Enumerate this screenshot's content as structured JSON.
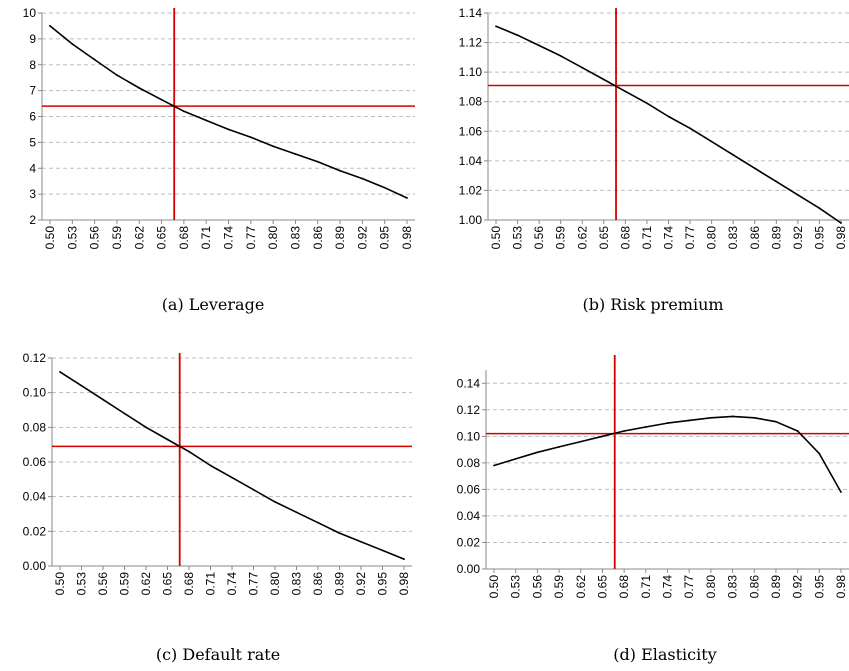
{
  "chart_data": [
    {
      "type": "line",
      "caption": "(a) Leverage",
      "x": [
        0.5,
        0.53,
        0.56,
        0.59,
        0.62,
        0.65,
        0.68,
        0.71,
        0.74,
        0.77,
        0.8,
        0.83,
        0.86,
        0.89,
        0.92,
        0.95,
        0.98
      ],
      "x_ticks": [
        "0.50",
        "0.53",
        "0.56",
        "0.59",
        "0.62",
        "0.65",
        "0.68",
        "0.71",
        "0.74",
        "0.77",
        "0.80",
        "0.83",
        "0.86",
        "0.89",
        "0.92",
        "0.95",
        "0.98"
      ],
      "series": [
        {
          "values": [
            9.5,
            8.8,
            8.2,
            7.6,
            7.1,
            6.65,
            6.2,
            5.85,
            5.5,
            5.2,
            4.85,
            4.55,
            4.25,
            3.9,
            3.6,
            3.25,
            2.85
          ]
        }
      ],
      "reference_lines": {
        "x": 0.667,
        "y": 6.4
      },
      "ylim": [
        2,
        10
      ],
      "y_ticks": [
        "2",
        "3",
        "4",
        "5",
        "6",
        "7",
        "8",
        "9",
        "10"
      ],
      "grid": true,
      "line_color": "#000000",
      "reference_color": "#d40000"
    },
    {
      "type": "line",
      "caption": "(b) Risk premium",
      "x": [
        0.5,
        0.53,
        0.56,
        0.59,
        0.62,
        0.65,
        0.68,
        0.71,
        0.74,
        0.77,
        0.8,
        0.83,
        0.86,
        0.89,
        0.92,
        0.95,
        0.98
      ],
      "x_ticks": [
        "0.50",
        "0.53",
        "0.56",
        "0.59",
        "0.62",
        "0.65",
        "0.68",
        "0.71",
        "0.74",
        "0.77",
        "0.80",
        "0.83",
        "0.86",
        "0.89",
        "0.92",
        "0.95",
        "0.98"
      ],
      "series": [
        {
          "values": [
            1.131,
            1.125,
            1.118,
            1.111,
            1.103,
            1.095,
            1.087,
            1.079,
            1.07,
            1.062,
            1.053,
            1.044,
            1.035,
            1.026,
            1.017,
            1.008,
            0.998
          ]
        }
      ],
      "reference_lines": {
        "x": 0.667,
        "y": 1.091
      },
      "ylim": [
        1.0,
        1.14
      ],
      "y_ticks": [
        "1.00",
        "1.02",
        "1.04",
        "1.06",
        "1.08",
        "1.10",
        "1.12",
        "1.14"
      ],
      "grid": true,
      "line_color": "#000000",
      "reference_color": "#d40000"
    },
    {
      "type": "line",
      "caption": "(c) Default rate",
      "x": [
        0.5,
        0.53,
        0.56,
        0.59,
        0.62,
        0.65,
        0.68,
        0.71,
        0.74,
        0.77,
        0.8,
        0.83,
        0.86,
        0.89,
        0.92,
        0.95,
        0.98
      ],
      "x_ticks": [
        "0.50",
        "0.53",
        "0.56",
        "0.59",
        "0.62",
        "0.65",
        "0.68",
        "0.71",
        "0.74",
        "0.77",
        "0.80",
        "0.83",
        "0.86",
        "0.89",
        "0.92",
        "0.95",
        "0.98"
      ],
      "series": [
        {
          "values": [
            0.112,
            0.104,
            0.096,
            0.088,
            0.08,
            0.073,
            0.066,
            0.058,
            0.051,
            0.044,
            0.037,
            0.031,
            0.025,
            0.019,
            0.014,
            0.009,
            0.004
          ]
        }
      ],
      "reference_lines": {
        "x": 0.667,
        "y": 0.069
      },
      "ylim": [
        0,
        0.12
      ],
      "y_ticks": [
        "0.00",
        "0.02",
        "0.04",
        "0.06",
        "0.08",
        "0.10",
        "0.12"
      ],
      "grid": true,
      "line_color": "#000000",
      "reference_color": "#d40000"
    },
    {
      "type": "line",
      "caption": "(d) Elasticity",
      "x": [
        0.5,
        0.53,
        0.56,
        0.59,
        0.62,
        0.65,
        0.68,
        0.71,
        0.74,
        0.77,
        0.8,
        0.83,
        0.86,
        0.89,
        0.92,
        0.95,
        0.98
      ],
      "x_ticks": [
        "0.50",
        "0.53",
        "0.56",
        "0.59",
        "0.62",
        "0.65",
        "0.68",
        "0.71",
        "0.74",
        "0.77",
        "0.80",
        "0.83",
        "0.86",
        "0.89",
        "0.92",
        "0.95",
        "0.98"
      ],
      "series": [
        {
          "values": [
            0.078,
            0.083,
            0.088,
            0.092,
            0.096,
            0.1,
            0.104,
            0.107,
            0.11,
            0.112,
            0.114,
            0.115,
            0.114,
            0.111,
            0.104,
            0.087,
            0.058
          ]
        }
      ],
      "reference_lines": {
        "x": 0.667,
        "y": 0.102
      },
      "ylim": [
        0,
        0.15
      ],
      "y_ticks": [
        "0.00",
        "0.02",
        "0.04",
        "0.06",
        "0.08",
        "0.10",
        "0.12",
        "0.14"
      ],
      "grid": true,
      "line_color": "#000000",
      "reference_color": "#d40000"
    }
  ]
}
